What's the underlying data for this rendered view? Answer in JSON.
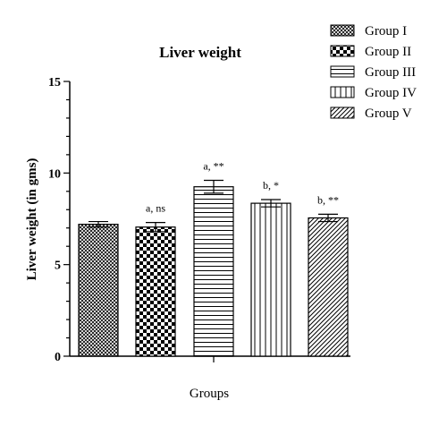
{
  "chart_data": {
    "type": "bar",
    "title": "Liver weight",
    "xlabel": "Groups",
    "ylabel": "Liver weight (in gms)",
    "ylim": [
      0,
      15
    ],
    "yticks": [
      "0",
      "5",
      "10",
      "15"
    ],
    "categories": [
      "Group I",
      "Group II",
      "Group III",
      "Group IV",
      "Group V"
    ],
    "values": [
      7.2,
      7.05,
      9.25,
      8.35,
      7.55
    ],
    "errors": [
      0.15,
      0.25,
      0.35,
      0.2,
      0.2
    ],
    "annotations": [
      "",
      "a, ns",
      "a, **",
      "b, *",
      "b, **"
    ],
    "patterns": [
      "crosshatch",
      "checker",
      "horizontal-lines",
      "vertical-lines",
      "diagonal-lines"
    ],
    "legend_position": "top-right",
    "grid": false,
    "colors": {
      "ink": "#000000",
      "background": "#ffffff"
    }
  }
}
